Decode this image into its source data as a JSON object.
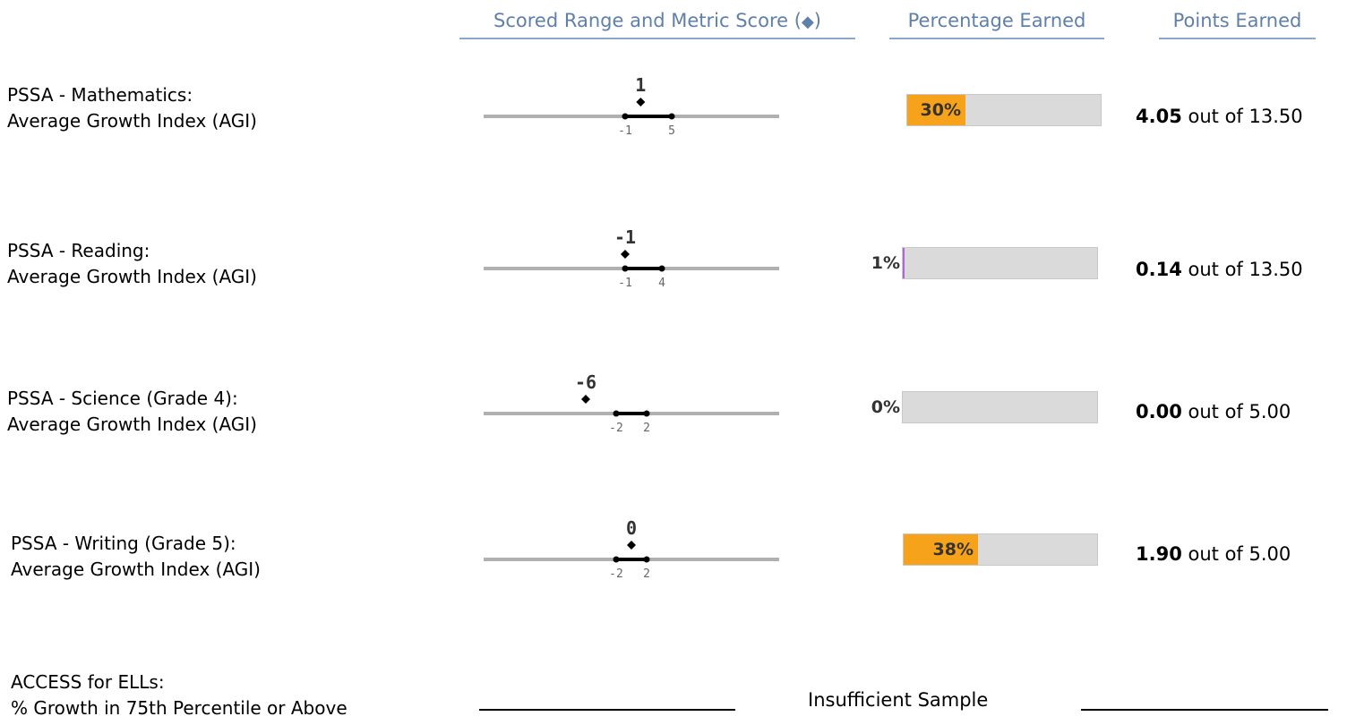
{
  "headers": {
    "scored_range": "Scored Range and Metric Score",
    "scored_range_symbol_open": "(",
    "scored_range_symbol": "◆",
    "scored_range_symbol_close": ")",
    "percentage_earned": "Percentage Earned",
    "points_earned": "Points Earned"
  },
  "colors": {
    "header": "#5f80a8",
    "bar_fill": "#f7a21b",
    "bar_bg": "#dadada",
    "range_line": "#b0b0b0",
    "one_percent_marker": "#b066d8"
  },
  "chart_data": [
    {
      "type": "range-dot",
      "metric_line1": "PSSA - Mathematics:",
      "metric_line2": "Average Growth Index (AGI)",
      "range_min": -1,
      "range_max": 5,
      "range_min_label": "-1",
      "range_max_label": "5",
      "score": 1,
      "score_label": "1",
      "percent": 30,
      "percent_label": "30%",
      "points": "4.05",
      "points_mid": "out of",
      "points_max": "13.50"
    },
    {
      "type": "range-dot",
      "metric_line1": "PSSA - Reading:",
      "metric_line2": "Average Growth Index (AGI)",
      "range_min": -1,
      "range_max": 4,
      "range_min_label": "-1",
      "range_max_label": "4",
      "score": -1,
      "score_label": "-1",
      "percent": 1,
      "percent_label": "1%",
      "points": "0.14",
      "points_mid": "out of",
      "points_max": "13.50"
    },
    {
      "type": "range-dot",
      "metric_line1": "PSSA - Science (Grade 4):",
      "metric_line2": "Average Growth Index (AGI)",
      "range_min": -2,
      "range_max": 2,
      "range_min_label": "-2",
      "range_max_label": "2",
      "score": -6,
      "score_label": "-6",
      "percent": 0,
      "percent_label": "0%",
      "points": "0.00",
      "points_mid": "out of",
      "points_max": "5.00"
    },
    {
      "type": "range-dot",
      "metric_line1": "PSSA - Writing (Grade 5):",
      "metric_line2": "Average Growth Index (AGI)",
      "range_min": -2,
      "range_max": 2,
      "range_min_label": "-2",
      "range_max_label": "2",
      "score": 0,
      "score_label": "0",
      "percent": 38,
      "percent_label": "38%",
      "points": "1.90",
      "points_mid": "out of",
      "points_max": "5.00"
    }
  ],
  "access": {
    "metric_line1": "ACCESS for ELLs:",
    "metric_line2": "% Growth in 75th Percentile or Above",
    "status": "Insufficient Sample"
  }
}
